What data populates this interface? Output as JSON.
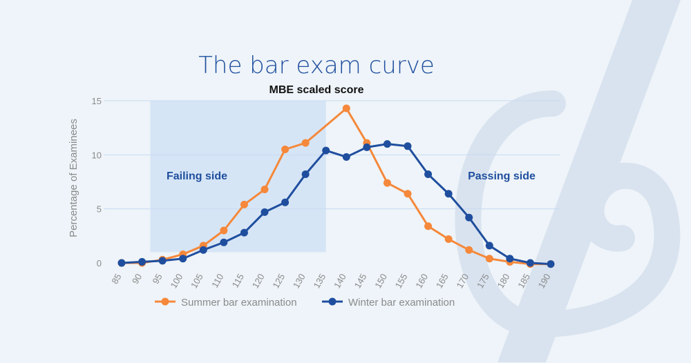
{
  "chart_data": {
    "type": "line",
    "title": "The bar exam curve",
    "subtitle": "MBE scaled score",
    "xlabel": "",
    "ylabel": "Percentage of Examinees",
    "ylim": [
      0,
      15
    ],
    "yticks": [
      0,
      5,
      10,
      15
    ],
    "grid": true,
    "legend_position": "bottom",
    "x": [
      85,
      90,
      95,
      100,
      105,
      110,
      115,
      120,
      125,
      130,
      135,
      140,
      145,
      150,
      155,
      160,
      165,
      170,
      175,
      180,
      185,
      190
    ],
    "x_tick_labels": [
      "85",
      "90",
      "95",
      "100",
      "105",
      "110",
      "115",
      "120",
      "125",
      "130",
      "135",
      "140",
      "145",
      "150",
      "155",
      "160",
      "165",
      "170",
      "175",
      "180",
      "185",
      "190"
    ],
    "series": [
      {
        "name": "Summer bar examination",
        "color": "#f5883a",
        "values": [
          0,
          0,
          0.3,
          0.8,
          1.6,
          3.0,
          5.4,
          6.8,
          10.5,
          11.1,
          null,
          14.3,
          11.1,
          7.4,
          6.4,
          3.4,
          2.2,
          1.2,
          0.4,
          0.1,
          -0.1,
          -0.1
        ]
      },
      {
        "name": "Winter bar examination",
        "color": "#1f4e9e",
        "values": [
          0,
          0.1,
          0.2,
          0.4,
          1.2,
          1.9,
          2.8,
          4.7,
          5.6,
          8.2,
          10.4,
          9.8,
          10.7,
          11.0,
          10.8,
          8.2,
          6.4,
          4.2,
          1.6,
          0.4,
          0,
          -0.1
        ]
      }
    ],
    "regions": [
      {
        "label": "Failing side",
        "x_start": 92,
        "x_end": 135,
        "y_top": 15,
        "y_bottom": 1
      },
      {
        "label": "Passing side"
      }
    ],
    "colors": {
      "title": "#1f4e9e",
      "region_fill": "#d6e5f6",
      "region_label": "#1f4e9e",
      "grid": "#c8daf0",
      "axis_text": "#8a8a8a",
      "subtitle": "#111111",
      "background": "#eef4f9",
      "watermark": "#d9e3ef"
    }
  }
}
